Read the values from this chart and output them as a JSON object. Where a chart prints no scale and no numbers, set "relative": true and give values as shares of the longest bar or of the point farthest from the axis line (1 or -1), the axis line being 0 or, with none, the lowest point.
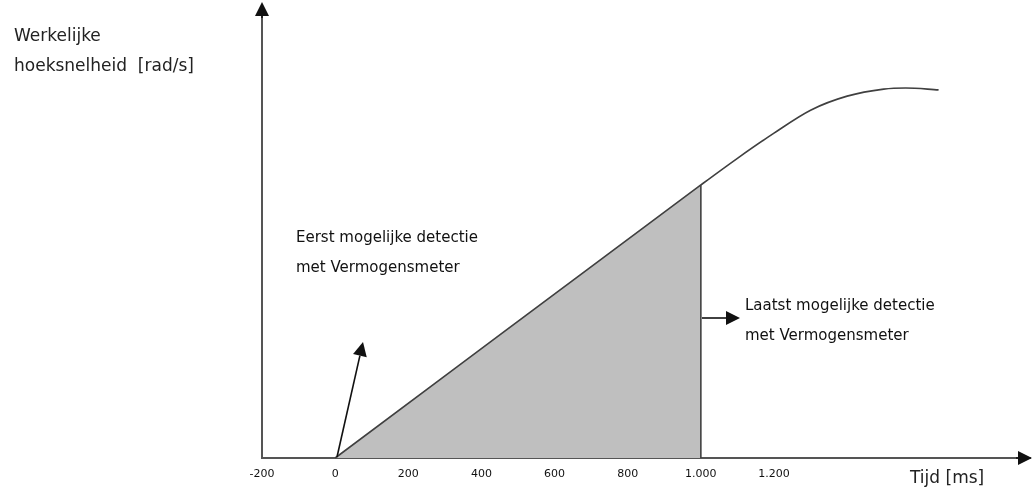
{
  "chart_data": {
    "type": "line",
    "relative": true,
    "xlabel": "Tijd [ms]",
    "ylabel": "Werkelijke\nhoeksnelheid  [rad/s]",
    "xlim": [
      -200,
      1900
    ],
    "xticks": [
      -200,
      0,
      200,
      400,
      600,
      800,
      {
        "value": 1000,
        "label": "1.000"
      },
      {
        "value": 1200,
        "label": "1.200"
      }
    ],
    "marker": "none",
    "series": [
      {
        "type": "area",
        "color": "#bfbfbf",
        "x": [
          0,
          1000
        ],
        "values": [
          0,
          0.738
        ]
      },
      {
        "type": "line",
        "color": "#404040",
        "x": [
          0,
          1000,
          1100,
          1200,
          1300,
          1400,
          1500,
          1560,
          1650
        ],
        "values": [
          0,
          0.738,
          0.81,
          0.878,
          0.94,
          0.978,
          0.997,
          1,
          0.995
        ]
      }
    ],
    "annotations": [
      "Eerst mogelijke detectie\nmet Vermogensmeter",
      "Laatst mogelijke detectie\nmet Vermogensmeter"
    ]
  }
}
